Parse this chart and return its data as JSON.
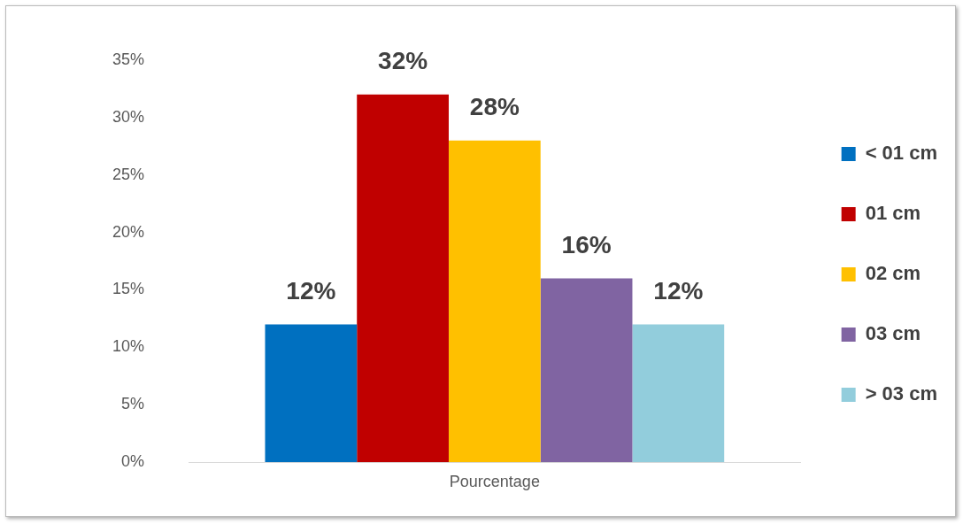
{
  "chart_data": {
    "type": "bar",
    "xlabel": "Pourcentage",
    "categories": [
      null
    ],
    "series": [
      {
        "name": "< 01 cm",
        "color": "#0070c0",
        "values": [
          12
        ],
        "value_labels": [
          "12%"
        ]
      },
      {
        "name": "01 cm",
        "color": "#c00000",
        "values": [
          32
        ],
        "value_labels": [
          "32%"
        ]
      },
      {
        "name": "02 cm",
        "color": "#ffc000",
        "values": [
          28
        ],
        "value_labels": [
          "28%"
        ]
      },
      {
        "name": "03 cm",
        "color": "#8064a2",
        "values": [
          16
        ],
        "value_labels": [
          "16%"
        ]
      },
      {
        "name": "> 03 cm",
        "color": "#92cddc",
        "values": [
          12
        ],
        "value_labels": [
          "12%"
        ]
      }
    ],
    "ylim": [
      0,
      35
    ],
    "yticks": [
      {
        "value": 0,
        "label": "0%"
      },
      {
        "value": 5,
        "label": "5%"
      },
      {
        "value": 10,
        "label": "10%"
      },
      {
        "value": 15,
        "label": "15%"
      },
      {
        "value": 20,
        "label": "20%"
      },
      {
        "value": 25,
        "label": "25%"
      },
      {
        "value": 30,
        "label": "30%"
      },
      {
        "value": 35,
        "label": "35%"
      }
    ],
    "legend": "right"
  }
}
